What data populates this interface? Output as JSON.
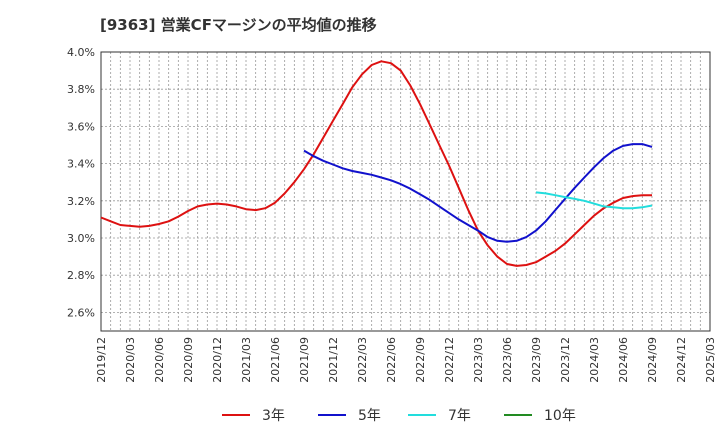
{
  "chart_data": {
    "type": "line",
    "title": "[9363]  営業CFマージンの平均値の推移",
    "xlabel": "",
    "ylabel": "",
    "ylim": [
      2.5,
      4.0
    ],
    "yticks": [
      2.6,
      2.8,
      3.0,
      3.2,
      3.4,
      3.6,
      3.8,
      4.0
    ],
    "ytick_labels": [
      "2.6%",
      "2.8%",
      "3.0%",
      "3.2%",
      "3.4%",
      "3.6%",
      "3.8%",
      "4.0%"
    ],
    "x_range": [
      "2019/12",
      "2025/03"
    ],
    "xtick_labels": [
      "2019/12",
      "2020/03",
      "2020/06",
      "2020/09",
      "2020/12",
      "2021/03",
      "2021/06",
      "2021/09",
      "2021/12",
      "2022/03",
      "2022/06",
      "2022/09",
      "2022/12",
      "2023/03",
      "2023/06",
      "2023/09",
      "2023/12",
      "2024/03",
      "2024/06",
      "2024/09",
      "2024/12",
      "2025/03"
    ],
    "grid": true,
    "legend_position": "bottom",
    "series": [
      {
        "name": "3年",
        "color": "#dd1111",
        "x": [
          "2019/12",
          "2020/01",
          "2020/02",
          "2020/03",
          "2020/04",
          "2020/05",
          "2020/06",
          "2020/07",
          "2020/08",
          "2020/09",
          "2020/10",
          "2020/11",
          "2020/12",
          "2021/01",
          "2021/02",
          "2021/03",
          "2021/04",
          "2021/05",
          "2021/06",
          "2021/07",
          "2021/08",
          "2021/09",
          "2021/10",
          "2021/11",
          "2021/12",
          "2022/01",
          "2022/02",
          "2022/03",
          "2022/04",
          "2022/05",
          "2022/06",
          "2022/07",
          "2022/08",
          "2022/09",
          "2022/10",
          "2022/11",
          "2022/12",
          "2023/01",
          "2023/02",
          "2023/03",
          "2023/04",
          "2023/05",
          "2023/06",
          "2023/07",
          "2023/08",
          "2023/09",
          "2023/10",
          "2023/11",
          "2023/12",
          "2024/01",
          "2024/02",
          "2024/03",
          "2024/04",
          "2024/05",
          "2024/06",
          "2024/07",
          "2024/08",
          "2024/09"
        ],
        "values": [
          3.11,
          3.09,
          3.07,
          3.065,
          3.06,
          3.065,
          3.075,
          3.09,
          3.115,
          3.145,
          3.17,
          3.18,
          3.185,
          3.18,
          3.17,
          3.155,
          3.15,
          3.16,
          3.19,
          3.24,
          3.3,
          3.37,
          3.45,
          3.54,
          3.63,
          3.72,
          3.81,
          3.88,
          3.93,
          3.95,
          3.94,
          3.9,
          3.82,
          3.72,
          3.61,
          3.5,
          3.39,
          3.27,
          3.15,
          3.04,
          2.96,
          2.9,
          2.86,
          2.85,
          2.855,
          2.87,
          2.9,
          2.93,
          2.97,
          3.02,
          3.07,
          3.12,
          3.16,
          3.19,
          3.215,
          3.225,
          3.23,
          3.23
        ]
      },
      {
        "name": "5年",
        "color": "#1111cc",
        "x": [
          "2021/09",
          "2021/10",
          "2021/11",
          "2021/12",
          "2022/01",
          "2022/02",
          "2022/03",
          "2022/04",
          "2022/05",
          "2022/06",
          "2022/07",
          "2022/08",
          "2022/09",
          "2022/10",
          "2022/11",
          "2022/12",
          "2023/01",
          "2023/02",
          "2023/03",
          "2023/04",
          "2023/05",
          "2023/06",
          "2023/07",
          "2023/08",
          "2023/09",
          "2023/10",
          "2023/11",
          "2023/12",
          "2024/01",
          "2024/02",
          "2024/03",
          "2024/04",
          "2024/05",
          "2024/06",
          "2024/07",
          "2024/08",
          "2024/09"
        ],
        "values": [
          3.47,
          3.44,
          3.415,
          3.395,
          3.375,
          3.36,
          3.35,
          3.34,
          3.325,
          3.31,
          3.29,
          3.265,
          3.235,
          3.205,
          3.17,
          3.135,
          3.1,
          3.07,
          3.04,
          3.005,
          2.985,
          2.98,
          2.985,
          3.005,
          3.04,
          3.09,
          3.15,
          3.21,
          3.27,
          3.325,
          3.38,
          3.43,
          3.47,
          3.495,
          3.505,
          3.505,
          3.49
        ]
      },
      {
        "name": "7年",
        "color": "#22dddd",
        "x": [
          "2023/09",
          "2023/10",
          "2023/11",
          "2023/12",
          "2024/01",
          "2024/02",
          "2024/03",
          "2024/04",
          "2024/05",
          "2024/06",
          "2024/07",
          "2024/08",
          "2024/09"
        ],
        "values": [
          3.245,
          3.24,
          3.23,
          3.22,
          3.21,
          3.2,
          3.185,
          3.17,
          3.165,
          3.16,
          3.16,
          3.165,
          3.175
        ]
      },
      {
        "name": "10年",
        "color": "#228b22",
        "x": [],
        "values": []
      }
    ]
  }
}
